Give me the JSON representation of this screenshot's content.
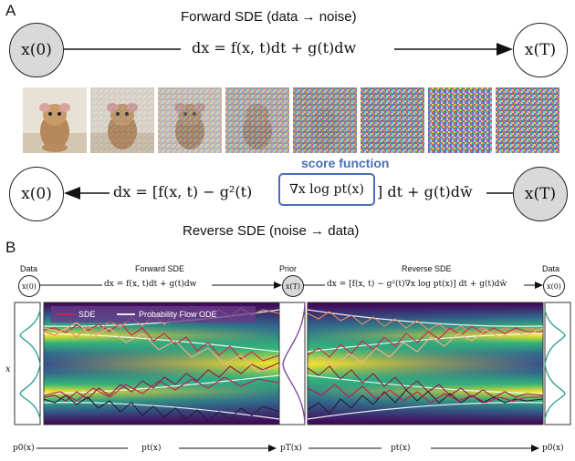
{
  "panel_a": {
    "letter": "A",
    "forward_title": "Forward SDE (data → noise)",
    "x0_label": "x(0)",
    "xT_label": "x(T)",
    "forward_eq": "dx = f(x, t)dt + g(t)dw",
    "score_label": "score function",
    "reverse_eq_left": "dx = [f(x, t) − g²(t)",
    "score_term": "∇x log pt(x)",
    "reverse_eq_right": "] dt + g(t)dw̄",
    "reverse_title": "Reverse SDE (noise → data)"
  },
  "panel_b": {
    "letter": "B",
    "data_left": "Data",
    "forward_sde": "Forward SDE",
    "prior": "Prior",
    "reverse_sde": "Reverse SDE",
    "data_right": "Data",
    "x0_small": "x(0)",
    "xT_small": "x(T)",
    "x0_small_right": "x(0)",
    "forward_eq_small": "dx = f(x, t)dt + g(t)dw",
    "reverse_eq_small": "dx = [f(x, t) − g²(t)∇x log pt(x)] dt + g(t)dw̄",
    "legend_sde": "SDE",
    "legend_ode": "Probability Flow ODE",
    "y_axis": "x",
    "p0_left": "p0(x)",
    "pt_left": "pt(x)",
    "pT": "pT(x)",
    "pt_right": "pt(x)",
    "p0_right": "p0(x)"
  },
  "colors": {
    "sde": "#d6204a",
    "ode": "#ffffff",
    "score_box": "#4a6fb5",
    "viridis_dark": "#440154",
    "viridis_yellow": "#fde725"
  }
}
